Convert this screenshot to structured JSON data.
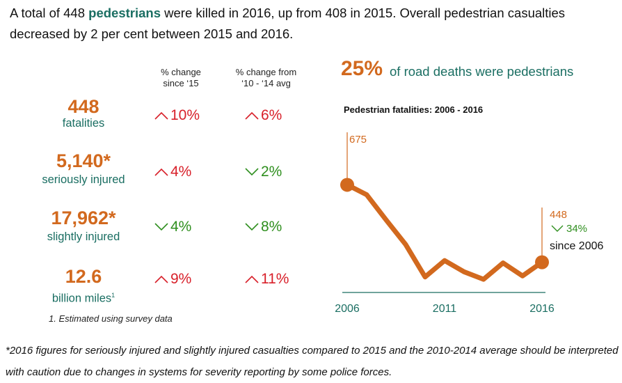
{
  "headline": {
    "before": "A total of 448 ",
    "highlight": "pedestrians",
    "after": " were killed in 2016, up from 408 in 2015. Overall pedestrian casualties decreased by 2 per cent between 2015 and 2016."
  },
  "columns": {
    "since15": "% change\nsince ‘15",
    "vsavg": "% change  from\n‘10 - ‘14 avg"
  },
  "stats": [
    {
      "value": "448",
      "label": "fatalities",
      "sup": "",
      "since15": {
        "dir": "up",
        "text": "10%"
      },
      "vsavg": {
        "dir": "up",
        "text": "6%"
      }
    },
    {
      "value": "5,140*",
      "label": "seriously injured",
      "sup": "",
      "since15": {
        "dir": "up",
        "text": "4%"
      },
      "vsavg": {
        "dir": "down",
        "text": "2%"
      }
    },
    {
      "value": "17,962*",
      "label": "slightly injured",
      "sup": "",
      "since15": {
        "dir": "down",
        "text": "4%"
      },
      "vsavg": {
        "dir": "down",
        "text": "8%"
      }
    },
    {
      "value": "12.6",
      "label": "billion miles",
      "sup": "1",
      "since15": {
        "dir": "up",
        "text": "9%"
      },
      "vsavg": {
        "dir": "up",
        "text": "11%"
      }
    }
  ],
  "note1": "1. Estimated using survey data",
  "share": {
    "percent": "25%",
    "text": "of road deaths were pedestrians"
  },
  "footnote": "*2016 figures for seriously injured and slightly injured casualties compared to 2015 and the 2010-2014 average should be interpreted with caution due to changes in systems for severity reporting by some police forces.",
  "colors": {
    "accent": "#d2691e",
    "teal": "#1a6e62",
    "up": "#d8202a",
    "down": "#2f8f1f"
  },
  "chart_data": {
    "type": "line",
    "title": "Pedestrian fatalities: 2006 - 2016",
    "x": [
      2006,
      2007,
      2008,
      2009,
      2010,
      2011,
      2012,
      2013,
      2014,
      2015,
      2016
    ],
    "series": [
      {
        "values": [
          675,
          646,
          572,
          500,
          405,
          453,
          420,
          398,
          446,
          408,
          448
        ]
      }
    ],
    "xticks": [
      "2006",
      "2011",
      "2016"
    ],
    "ylim": [
      390,
      680
    ],
    "annotations": {
      "start_value": "675",
      "end_value": "448",
      "end_change": "34%",
      "end_change_label": "since 2006"
    }
  }
}
